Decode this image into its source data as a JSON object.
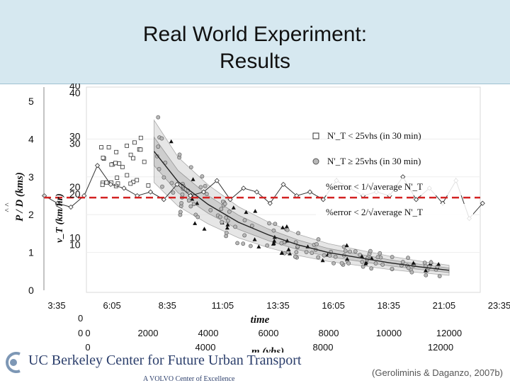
{
  "slide": {
    "title_line1": "Real World Experiment:",
    "title_line2": "Results",
    "citation": "(Geroliminis & Daganzo, 2007b)"
  },
  "logo": {
    "line1": "UC Berkeley Center for Future Urban Transport",
    "line2": "A VOLVO Center of Excellence"
  },
  "chart_data": {
    "type": "scatter",
    "left_axis_label": "P / D  (kms)",
    "left_axis_hat": "^  ^",
    "left_ticks": [
      "0",
      "1",
      "2",
      "3",
      "4",
      "5"
    ],
    "left_ylim": [
      0,
      5
    ],
    "inner_axis_label": "v_T (km/hr)",
    "inner_ticks_a": [
      "10",
      "20",
      "30",
      "40"
    ],
    "inner_ticks_b": [
      "10",
      "20",
      "30",
      "40"
    ],
    "time_axis_label": "time",
    "time_ticks": [
      "3:35",
      "6:05",
      "8:35",
      "11:05",
      "13:35",
      "16:05",
      "18:35",
      "21:05",
      "23:35"
    ],
    "veh_axis_label": "m (vhs)",
    "veh_ticks_a": [
      "0",
      "2000",
      "4000",
      "6000",
      "8000",
      "10000",
      "12000"
    ],
    "veh_ticks_b": [
      "0",
      "4000",
      "8000",
      "12000"
    ],
    "bottom_zero_a": "0",
    "bottom_zero_b": "0",
    "legend": [
      {
        "marker": "square",
        "text": "N'_T < 25vhs (in 30 min)"
      },
      {
        "marker": "circle",
        "text": "N'_T ≥ 25vhs (in 30 min)"
      },
      {
        "marker": "none",
        "text": "%error < 1/√average N'_T"
      },
      {
        "marker": "none",
        "text": "%error < 2/√average N'_T"
      }
    ],
    "reference_level": 2.45,
    "series": [
      {
        "name": "average trip length time series (left axis)",
        "x_time_hours": [
          3.6,
          4.2,
          4.8,
          5.4,
          6.0,
          6.6,
          7.2,
          7.8,
          8.4,
          9.0,
          9.6,
          10.2,
          10.8,
          11.4,
          12.0,
          12.6,
          13.2,
          13.8,
          14.4,
          15.0,
          15.6,
          16.2,
          16.8,
          17.4,
          18.0,
          18.6,
          19.2,
          19.8,
          20.4,
          21.0,
          21.6,
          22.2,
          22.8,
          23.4
        ],
        "y": [
          2.5,
          2.3,
          2.2,
          2.5,
          3.3,
          2.8,
          2.7,
          2.5,
          2.6,
          2.4,
          2.8,
          2.5,
          2.6,
          2.9,
          2.4,
          2.7,
          2.6,
          2.3,
          2.8,
          2.5,
          2.6,
          2.4,
          2.9,
          2.7,
          2.5,
          2.6,
          2.5,
          3.0,
          2.4,
          2.7,
          2.3,
          2.9,
          1.9,
          2.3
        ]
      },
      {
        "name": "theoretical mean curve",
        "x_veh": [
          2200,
          3000,
          4000,
          5000,
          6000,
          7000,
          8000,
          9000,
          10000,
          11000,
          12000
        ],
        "y": [
          28,
          22,
          17.5,
          14,
          11.5,
          9.5,
          8,
          7,
          6,
          5.2,
          4.5
        ]
      }
    ]
  }
}
